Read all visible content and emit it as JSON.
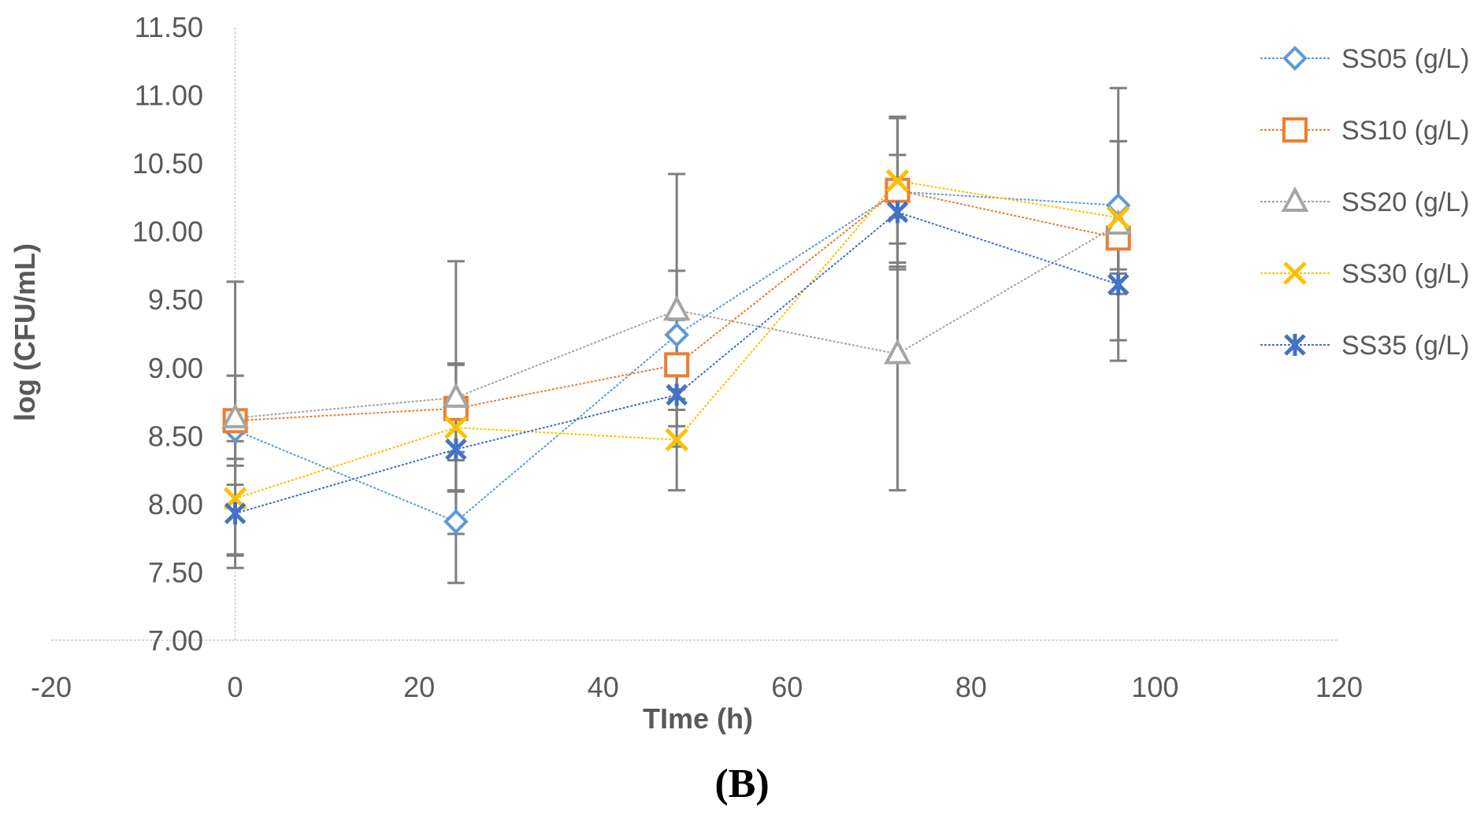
{
  "chart_data": {
    "type": "line",
    "title": "",
    "xlabel": "TIme (h)",
    "ylabel": "log (CFU/mL)",
    "panel_label": "(B)",
    "xlim": [
      -20,
      120
    ],
    "ylim": [
      7.0,
      11.5
    ],
    "x_ticks": [
      -20,
      0,
      20,
      40,
      60,
      80,
      100,
      120
    ],
    "x_tick_labels": [
      "-20",
      "0",
      "20",
      "40",
      "60",
      "80",
      "100",
      "120"
    ],
    "y_ticks": [
      7.0,
      7.5,
      8.0,
      8.5,
      9.0,
      9.5,
      10.0,
      10.5,
      11.0,
      11.5
    ],
    "y_tick_labels": [
      "7.00",
      "7.50",
      "8.00",
      "8.50",
      "9.00",
      "9.50",
      "10.00",
      "10.50",
      "11.00",
      "11.50"
    ],
    "x": [
      0,
      24,
      48,
      72,
      96
    ],
    "legend_position": "right",
    "grid": false,
    "series": [
      {
        "name": "SS05 (g/L)",
        "color": "#5B9BD5",
        "marker": "diamond",
        "values": [
          8.54,
          7.87,
          9.24,
          10.29,
          10.19
        ],
        "errors": [
          0.4,
          0.45,
          0.47,
          0.55,
          0.47
        ]
      },
      {
        "name": "SS10 (g/L)",
        "color": "#ED7D31",
        "marker": "square",
        "values": [
          8.61,
          8.7,
          9.02,
          10.3,
          9.95
        ],
        "errors": [
          0.33,
          0.32,
          0.33,
          0.53,
          0.26
        ]
      },
      {
        "name": "SS20 (g/L)",
        "color": "#A5A5A5",
        "marker": "triangle",
        "values": [
          8.63,
          8.78,
          9.42,
          9.1,
          10.05
        ],
        "errors": [
          1.0,
          1.0,
          1.0,
          1.0,
          1.0
        ]
      },
      {
        "name": "SS30 (g/L)",
        "color": "#FFC000",
        "marker": "x",
        "values": [
          8.04,
          8.56,
          8.47,
          10.37,
          10.1
        ],
        "errors": [
          0.42,
          0.47,
          0.37,
          0.46,
          0.56
        ]
      },
      {
        "name": "SS35 (g/L)",
        "color": "#4472C4",
        "marker": "star",
        "values": [
          7.93,
          8.4,
          8.8,
          10.14,
          9.61
        ],
        "errors": [
          0.4,
          0.3,
          0.23,
          0.42,
          0.41
        ]
      }
    ]
  }
}
